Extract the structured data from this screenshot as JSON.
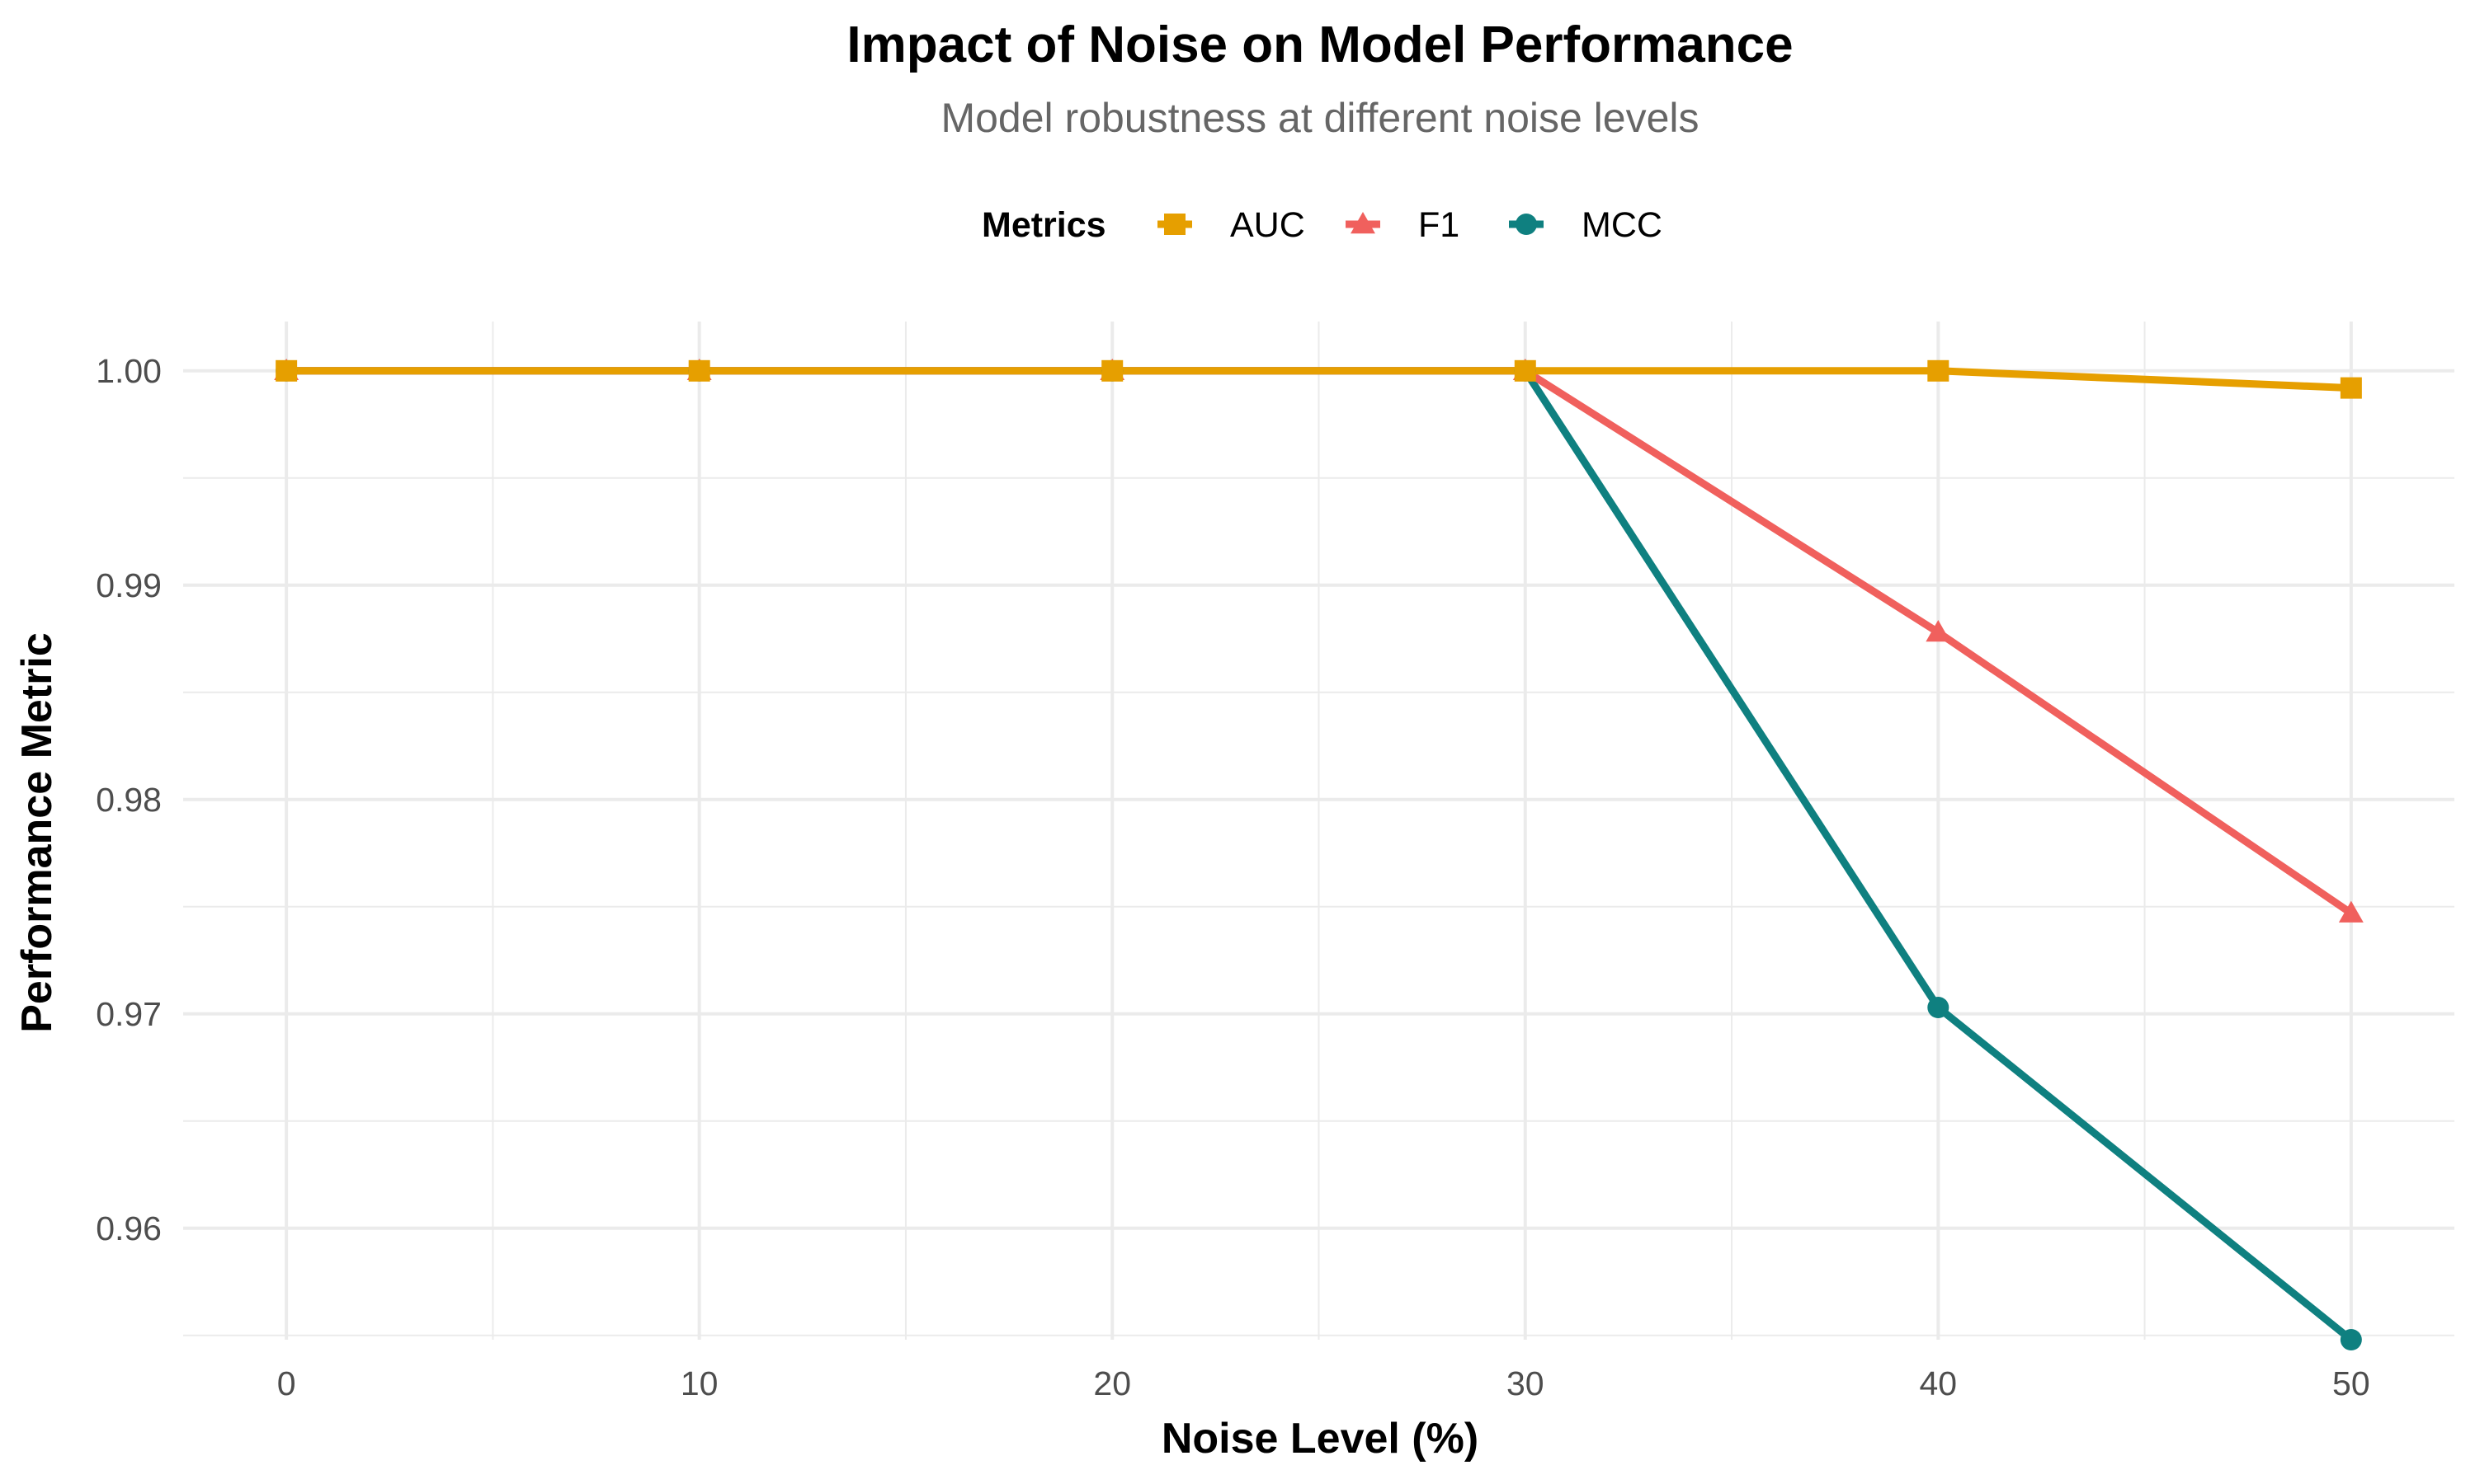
{
  "chart_data": {
    "type": "line",
    "title": "Impact of Noise on Model Performance",
    "subtitle": "Model robustness at different noise levels",
    "xlabel": "Noise Level (%)",
    "ylabel": "Performance Metric",
    "x": [
      0,
      10,
      20,
      30,
      40,
      50
    ],
    "xlim": [
      -2.5,
      52.5
    ],
    "ylim": [
      0.9548,
      1.0023
    ],
    "x_ticks": [
      0,
      10,
      20,
      30,
      40,
      50
    ],
    "x_tick_labels": [
      "0",
      "10",
      "20",
      "30",
      "40",
      "50"
    ],
    "y_ticks": [
      0.96,
      0.97,
      0.98,
      0.99,
      1.0
    ],
    "y_tick_labels": [
      "0.96",
      "0.97",
      "0.98",
      "0.99",
      "1.00"
    ],
    "grid": true,
    "legend": {
      "title": "Metrics",
      "position": "top"
    },
    "series": [
      {
        "name": "AUC",
        "color": "#E69F00",
        "marker": "square",
        "values": [
          1.0,
          1.0,
          1.0,
          1.0,
          1.0,
          0.9992
        ]
      },
      {
        "name": "F1",
        "color": "#F0605D",
        "marker": "triangle",
        "values": [
          1.0,
          1.0,
          1.0,
          1.0,
          0.9878,
          0.9747
        ]
      },
      {
        "name": "MCC",
        "color": "#0F8080",
        "marker": "circle",
        "values": [
          1.0,
          1.0,
          1.0,
          1.0,
          0.9703,
          0.9548
        ]
      }
    ]
  }
}
